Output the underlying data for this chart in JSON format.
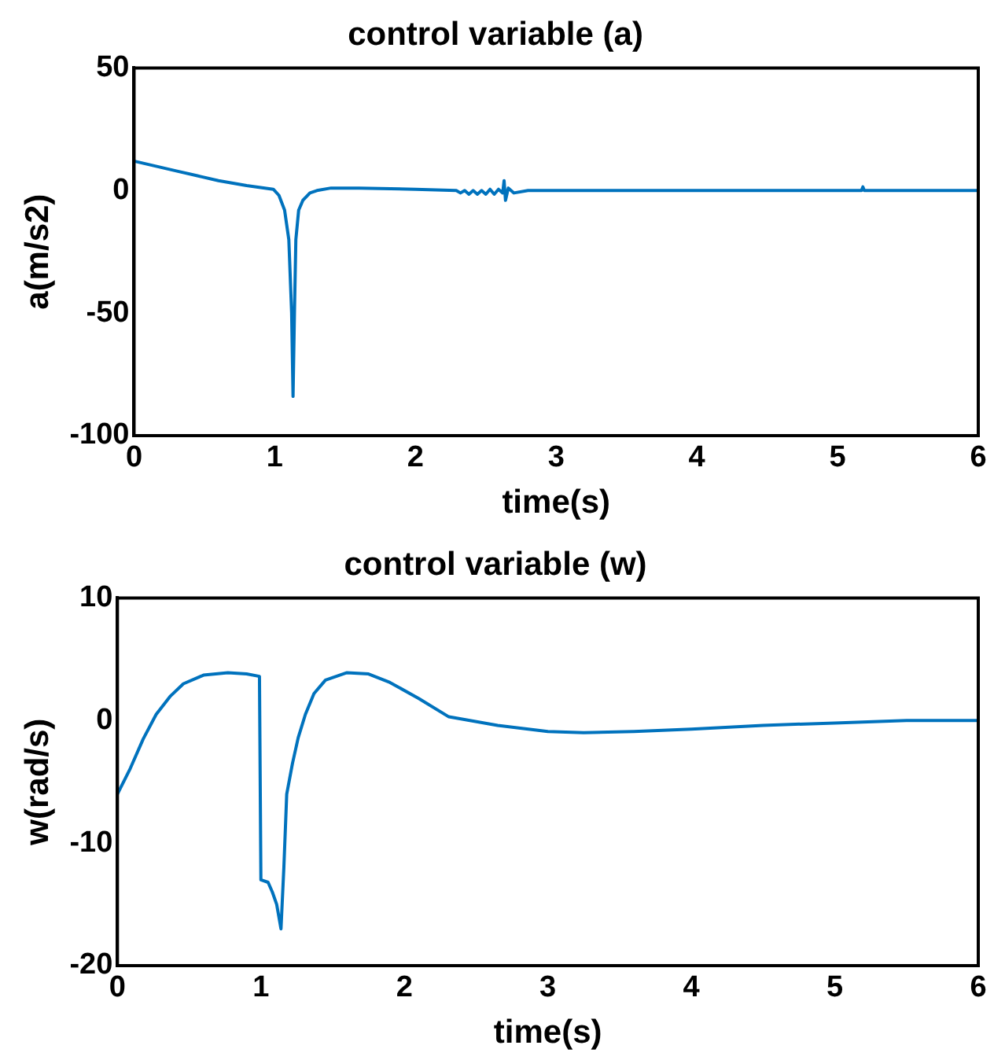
{
  "chart_data": [
    {
      "type": "line",
      "title": "control variable (a)",
      "xlabel": "time(s)",
      "ylabel": "a(m/s2)",
      "xlim": [
        0,
        6
      ],
      "ylim": [
        -100,
        50
      ],
      "xticks": [
        0,
        1,
        2,
        3,
        4,
        5,
        6
      ],
      "yticks": [
        -100,
        -50,
        0,
        50
      ],
      "grid": false,
      "legend": false,
      "marker": "none",
      "line_style": "solid",
      "series": [
        {
          "color": "#0072bd",
          "x": [
            0,
            0.15,
            0.3,
            0.45,
            0.6,
            0.8,
            0.99,
            1.03,
            1.07,
            1.1,
            1.12,
            1.13,
            1.14,
            1.15,
            1.17,
            1.2,
            1.25,
            1.3,
            1.4,
            1.6,
            2.0,
            2.29,
            2.32,
            2.35,
            2.38,
            2.41,
            2.44,
            2.47,
            2.5,
            2.53,
            2.56,
            2.59,
            2.62,
            2.63,
            2.64,
            2.66,
            2.7,
            2.8,
            3.5,
            4.5,
            5.17,
            5.18,
            5.19,
            6
          ],
          "values": [
            12,
            10,
            8,
            6,
            4,
            2,
            0.5,
            -2,
            -8,
            -20,
            -50,
            -84,
            -50,
            -20,
            -8,
            -4,
            -1,
            0,
            1,
            1,
            0.5,
            0,
            -1,
            0,
            -1.5,
            0,
            -1.5,
            0,
            -1.5,
            0.5,
            -1.5,
            0.5,
            -1,
            4,
            -4,
            1,
            -1,
            0,
            0,
            0,
            0,
            1.5,
            0,
            0
          ]
        }
      ]
    },
    {
      "type": "line",
      "title": "control variable (w)",
      "xlabel": "time(s)",
      "ylabel": "w(rad/s)",
      "xlim": [
        0,
        6
      ],
      "ylim": [
        -20,
        10
      ],
      "xticks": [
        0,
        1,
        2,
        3,
        4,
        5,
        6
      ],
      "yticks": [
        -20,
        -10,
        0,
        10
      ],
      "grid": false,
      "legend": false,
      "marker": "none",
      "line_style": "solid",
      "series": [
        {
          "color": "#0072bd",
          "x": [
            0,
            0.09,
            0.18,
            0.27,
            0.37,
            0.46,
            0.6,
            0.77,
            0.9,
            0.99,
            1.0,
            1.05,
            1.08,
            1.11,
            1.14,
            1.16,
            1.18,
            1.22,
            1.26,
            1.31,
            1.37,
            1.45,
            1.6,
            1.75,
            1.9,
            2.1,
            2.31,
            2.65,
            3.0,
            3.25,
            3.6,
            4.0,
            4.5,
            5.0,
            5.5,
            6
          ],
          "values": [
            -6,
            -3.9,
            -1.5,
            0.5,
            2,
            3,
            3.7,
            3.9,
            3.8,
            3.6,
            -13,
            -13.2,
            -14,
            -15,
            -17,
            -12,
            -6,
            -3.5,
            -1.4,
            0.5,
            2.2,
            3.3,
            3.9,
            3.8,
            3.1,
            1.8,
            0.3,
            -0.4,
            -0.9,
            -1,
            -0.9,
            -0.7,
            -0.4,
            -0.2,
            0,
            0
          ]
        }
      ]
    }
  ]
}
